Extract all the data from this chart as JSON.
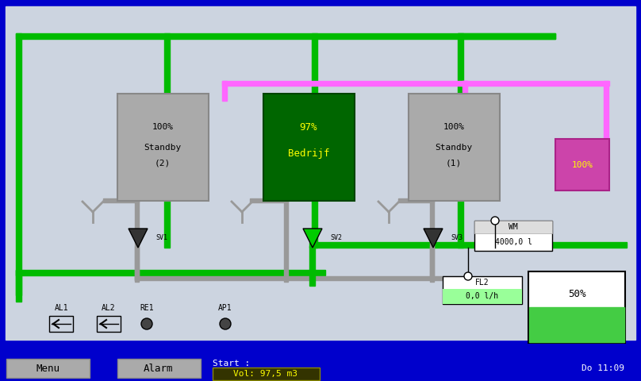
{
  "bg_color": "#ccd4e0",
  "border_color": "#0000cc",
  "green_pipe": "#00bb00",
  "pink_pipe": "#ff66ff",
  "gray_pipe": "#999999",
  "pump_gray": "#aaaaaa",
  "pump_active": "#006600",
  "pump_pink": "#cc44aa",
  "valve_dark": "#333333",
  "valve_green": "#00cc00",
  "wm_box_bg": "#ffffff",
  "fl2_bg": "#99ff99",
  "tank_green": "#44cc44",
  "bottom_bar_bg": "#0000cc",
  "menu_btn": "#aaaaaa",
  "vol_box_bg": "#333300",
  "wm_label": "WM",
  "wm_value": "4000,0 l",
  "fl2_label": "FL2",
  "fl2_value": "0,0 l/h",
  "tank_pct": "50%",
  "start_label": "Start :",
  "vol_value": "Vol: 97,5 m3",
  "time_text": "Do 11:09",
  "menu_text": "Menu",
  "alarm_text": "Alarm",
  "al1_text": "AL1",
  "al2_text": "AL2",
  "re1_text": "RE1",
  "ap1_text": "AP1",
  "sv1_text": "SV1",
  "sv2_text": "SV2",
  "sv3_text": "SV3",
  "pump1_pct": "100%",
  "pump1_status": "Standby",
  "pump1_num": "(2)",
  "pump2_pct": "97%",
  "pump2_status": "Bedrijf",
  "pump3_pct": "100%",
  "pump3_status": "Standby",
  "pump3_num": "(1)",
  "pump4_pct": "100%"
}
